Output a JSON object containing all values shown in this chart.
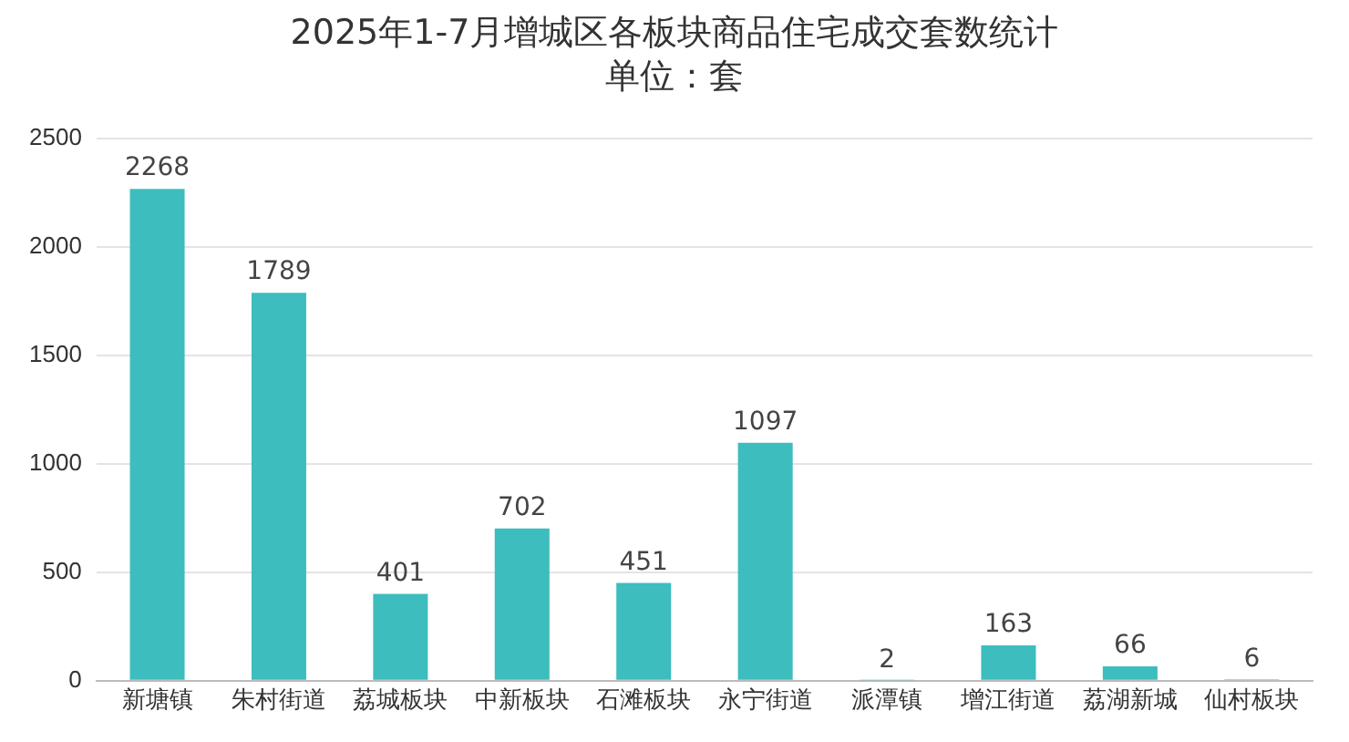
{
  "chart_data": {
    "type": "bar",
    "title": "2025年1-7月增城区各板块商品住宅成交套数统计",
    "subtitle": "单位：套",
    "categories": [
      "新塘镇",
      "朱村街道",
      "荔城板块",
      "中新板块",
      "石滩板块",
      "永宁街道",
      "派潭镇",
      "增江街道",
      "荔湖新城",
      "仙村板块"
    ],
    "values": [
      2268,
      1789,
      401,
      702,
      451,
      1097,
      2,
      163,
      66,
      6
    ],
    "color": "#3dbdbd",
    "ylim": [
      0,
      2500
    ],
    "yticks": [
      0,
      500,
      1000,
      1500,
      2000,
      2500
    ],
    "grid": "y",
    "data_labels": true
  }
}
